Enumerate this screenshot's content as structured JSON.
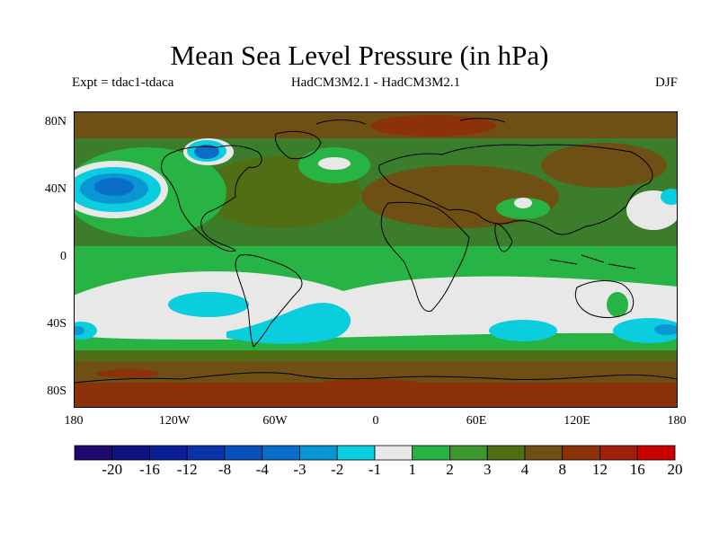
{
  "title": "Mean Sea Level Pressure (in hPa)",
  "subtitle_left": "Expt = tdac1-tdaca",
  "subtitle_center": "HadCM3M2.1 - HadCM3M2.1",
  "subtitle_right": "DJF",
  "lat_labels": [
    "80N",
    "40N",
    "0",
    "40S",
    "80S"
  ],
  "lon_labels": [
    "180",
    "120W",
    "60W",
    "0",
    "60E",
    "120E",
    "180"
  ],
  "colorbar": {
    "labels": [
      "-20",
      "-16",
      "-12",
      "-8",
      "-4",
      "-3",
      "-2",
      "-1",
      "1",
      "2",
      "3",
      "4",
      "8",
      "12",
      "16",
      "20"
    ],
    "colors": [
      "#1e0a6e",
      "#0d1280",
      "#0a1e96",
      "#0a32aa",
      "#0a50bb",
      "#0a6ec8",
      "#0a96d2",
      "#0acdde",
      "#e8e8e8",
      "#28b444",
      "#3c962d",
      "#506e14",
      "#6e5014",
      "#8c320a",
      "#a01e0a",
      "#c80000"
    ]
  },
  "map_colors": {
    "darkgreen": "#3c7d2c",
    "green": "#28b444",
    "olive": "#5a6b14",
    "brown": "#6e5014",
    "red_brown": "#8c320a",
    "white": "#e8e8e8",
    "cyan": "#0acdde",
    "light_blue": "#0a96d2",
    "blue": "#0a6ec8",
    "dark_blue": "#0a50bb"
  }
}
